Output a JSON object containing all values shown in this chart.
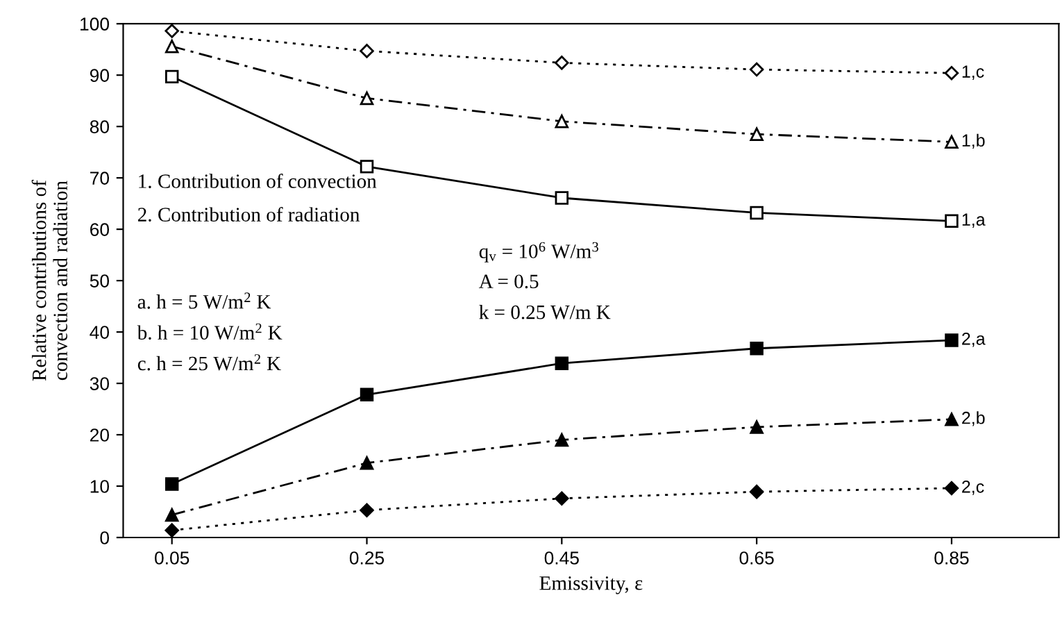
{
  "chart_data": {
    "type": "line",
    "xlabel": "Emissivity, ε",
    "ylabel": "Relative contributions of\nconvection and radiation",
    "x": [
      0.05,
      0.25,
      0.45,
      0.65,
      0.85
    ],
    "xlim": [
      0.0,
      0.96
    ],
    "xticks": [
      {
        "value": 0.05,
        "label": "0.05"
      },
      {
        "value": 0.25,
        "label": "0.25"
      },
      {
        "value": 0.45,
        "label": "0.45"
      },
      {
        "value": 0.65,
        "label": "0.65"
      },
      {
        "value": 0.85,
        "label": "0.85"
      }
    ],
    "ylim": [
      0,
      100
    ],
    "yticks": [
      0,
      10,
      20,
      30,
      40,
      50,
      60,
      70,
      80,
      90,
      100
    ],
    "grid": false,
    "legend": false,
    "series": [
      {
        "name": "1,c",
        "color": "#000000",
        "values": [
          98.6,
          94.7,
          92.4,
          91.1,
          90.4
        ],
        "marker": "diamond",
        "line_style": "dotted"
      },
      {
        "name": "1,b",
        "color": "#000000",
        "values": [
          95.6,
          85.5,
          81.0,
          78.5,
          77.0
        ],
        "marker": "triangle",
        "line_style": "dashdot"
      },
      {
        "name": "1,a",
        "color": "#000000",
        "values": [
          89.7,
          72.2,
          66.1,
          63.2,
          61.6
        ],
        "marker": "square",
        "line_style": "solid"
      },
      {
        "name": "2,a",
        "color": "#000000",
        "values": [
          10.4,
          27.8,
          33.9,
          36.8,
          38.4
        ],
        "marker": "square",
        "line_style": "solid"
      },
      {
        "name": "2,b",
        "color": "#000000",
        "values": [
          4.4,
          14.5,
          19.0,
          21.5,
          23.0
        ],
        "marker": "triangle",
        "line_style": "dashdot"
      },
      {
        "name": "2,c",
        "color": "#000000",
        "values": [
          1.4,
          5.3,
          7.6,
          8.9,
          9.6
        ],
        "marker": "diamond",
        "line_style": "dotted"
      }
    ],
    "annotations": [
      "1. Contribution of convection",
      "2. Contribution of radiation",
      "q$_{v}$ = 10$^{6}$ W/m$^{3}$",
      "A = 0.5",
      "k = 0.25 W/m K",
      "a. h = 5 W/m$^{2}$ K",
      "b. h = 10 W/m$^{2}$ K",
      "c. h = 25 W/m$^{2}$ K"
    ]
  }
}
